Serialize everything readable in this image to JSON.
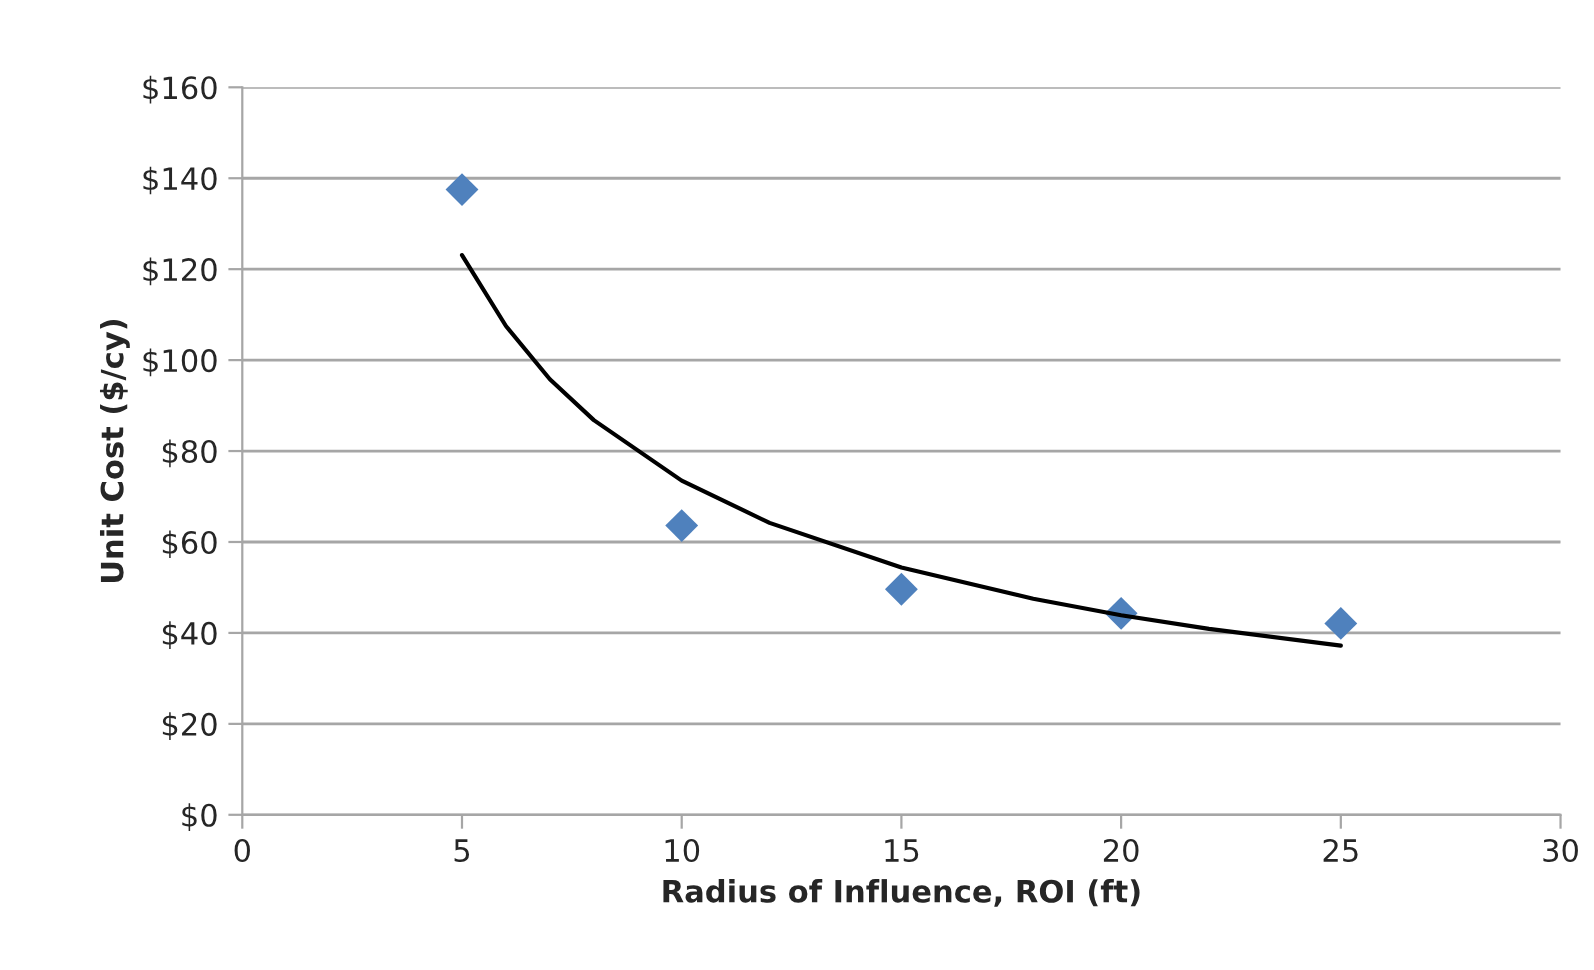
{
  "chart_data": {
    "type": "scatter",
    "xlabel": "Radius of Influence, ROI (ft)",
    "ylabel": "Unit Cost ($/cy)",
    "xlim": [
      0,
      30
    ],
    "xticks": [
      0,
      5,
      10,
      15,
      20,
      25,
      30
    ],
    "ylim": [
      0,
      160
    ],
    "yticks": [
      {
        "value": 0,
        "label": "$0"
      },
      {
        "value": 20,
        "label": "$20"
      },
      {
        "value": 40,
        "label": "$40"
      },
      {
        "value": 60,
        "label": "$60"
      },
      {
        "value": 80,
        "label": "$80"
      },
      {
        "value": 100,
        "label": "$100"
      },
      {
        "value": 120,
        "label": "$120"
      },
      {
        "value": 140,
        "label": "$140"
      },
      {
        "value": 160,
        "label": "$160"
      }
    ],
    "grid": "y",
    "legend": false,
    "marker": "diamond",
    "series": [
      {
        "color": "#4f81bd",
        "x": [
          5,
          10,
          15,
          20,
          25
        ],
        "values": [
          137.5,
          63.6,
          49.6,
          44.3,
          42.1
        ]
      },
      {
        "type": "line",
        "color": "#000000",
        "marker": "none",
        "x": [
          5,
          6,
          7,
          8,
          10,
          12,
          15,
          18,
          20,
          22,
          25
        ],
        "values": [
          123.1,
          107.5,
          95.8,
          86.8,
          73.5,
          64.2,
          54.4,
          47.5,
          43.9,
          40.9,
          37.2
        ]
      }
    ]
  }
}
